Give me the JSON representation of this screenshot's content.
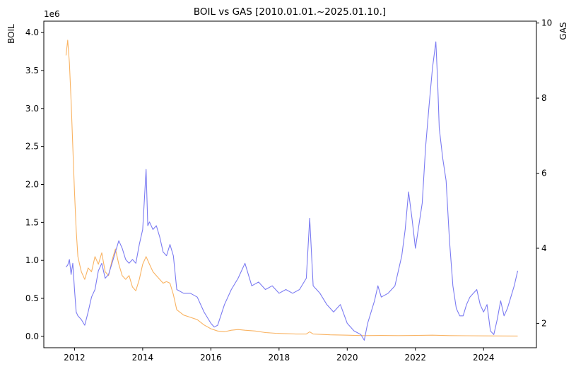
{
  "chart_data": {
    "type": "line",
    "title": "BOIL vs GAS [2010.01.01.~2025.01.10.]",
    "xlabel": "",
    "y_left": {
      "label": "BOIL",
      "label_color": "#ff8c00",
      "range": [
        -0.15,
        4.15
      ],
      "ticks": [
        0.0,
        0.5,
        1.0,
        1.5,
        2.0,
        2.5,
        3.0,
        3.5,
        4.0
      ],
      "tick_labels": [
        "0.0",
        "0.5",
        "1.0",
        "1.5",
        "2.0",
        "2.5",
        "3.0",
        "3.5",
        "4.0"
      ],
      "multiplier_label": "1e6"
    },
    "y_right": {
      "label": "GAS",
      "label_color": "#0000ff",
      "range": [
        1.35,
        10.05
      ],
      "ticks": [
        2,
        4,
        6,
        8,
        10
      ],
      "tick_labels": [
        "2",
        "4",
        "6",
        "8",
        "10"
      ]
    },
    "x_axis": {
      "range": [
        2011.1,
        2025.55
      ],
      "ticks": [
        2012,
        2014,
        2016,
        2018,
        2020,
        2022,
        2024
      ],
      "tick_labels": [
        "2012",
        "2014",
        "2016",
        "2018",
        "2020",
        "2022",
        "2024"
      ]
    },
    "series": [
      {
        "name": "BOIL",
        "axis": "left",
        "color": "#f9b362",
        "x": [
          2011.75,
          2011.8,
          2011.85,
          2011.9,
          2011.95,
          2012.0,
          2012.05,
          2012.1,
          2012.15,
          2012.2,
          2012.3,
          2012.4,
          2012.5,
          2012.6,
          2012.7,
          2012.8,
          2012.9,
          2013.0,
          2013.1,
          2013.2,
          2013.3,
          2013.4,
          2013.5,
          2013.6,
          2013.7,
          2013.8,
          2013.9,
          2014.0,
          2014.1,
          2014.2,
          2014.3,
          2014.4,
          2014.5,
          2014.6,
          2014.7,
          2014.8,
          2014.9,
          2015.0,
          2015.2,
          2015.4,
          2015.6,
          2015.8,
          2016.0,
          2016.2,
          2016.4,
          2016.6,
          2016.8,
          2017.0,
          2017.3,
          2017.6,
          2017.9,
          2018.2,
          2018.5,
          2018.8,
          2018.9,
          2019.0,
          2019.5,
          2020.0,
          2020.5,
          2021.0,
          2021.5,
          2022.0,
          2022.5,
          2023.0,
          2023.5,
          2024.0,
          2024.5,
          2025.0
        ],
        "values": [
          3.7,
          3.9,
          3.6,
          3.1,
          2.5,
          1.9,
          1.4,
          1.05,
          0.95,
          0.85,
          0.75,
          0.9,
          0.85,
          1.05,
          0.95,
          1.1,
          0.85,
          0.8,
          1.0,
          1.15,
          0.95,
          0.8,
          0.75,
          0.8,
          0.65,
          0.6,
          0.75,
          0.95,
          1.05,
          0.95,
          0.85,
          0.8,
          0.75,
          0.7,
          0.72,
          0.7,
          0.55,
          0.35,
          0.28,
          0.25,
          0.22,
          0.15,
          0.1,
          0.07,
          0.06,
          0.08,
          0.09,
          0.08,
          0.07,
          0.05,
          0.04,
          0.035,
          0.03,
          0.03,
          0.06,
          0.03,
          0.02,
          0.015,
          0.01,
          0.012,
          0.01,
          0.012,
          0.015,
          0.01,
          0.008,
          0.006,
          0.005,
          0.004
        ]
      },
      {
        "name": "GAS",
        "axis": "right",
        "color": "#7b7bf2",
        "x": [
          2011.75,
          2011.8,
          2011.85,
          2011.9,
          2011.95,
          2012.0,
          2012.05,
          2012.1,
          2012.2,
          2012.3,
          2012.4,
          2012.5,
          2012.6,
          2012.7,
          2012.8,
          2012.9,
          2013.0,
          2013.1,
          2013.2,
          2013.3,
          2013.4,
          2013.5,
          2013.6,
          2013.7,
          2013.8,
          2013.9,
          2014.0,
          2014.05,
          2014.1,
          2014.15,
          2014.2,
          2014.3,
          2014.4,
          2014.5,
          2014.6,
          2014.7,
          2014.8,
          2014.9,
          2015.0,
          2015.2,
          2015.4,
          2015.6,
          2015.8,
          2016.0,
          2016.1,
          2016.2,
          2016.4,
          2016.6,
          2016.8,
          2017.0,
          2017.2,
          2017.4,
          2017.6,
          2017.8,
          2018.0,
          2018.2,
          2018.4,
          2018.6,
          2018.8,
          2018.9,
          2019.0,
          2019.2,
          2019.4,
          2019.6,
          2019.8,
          2020.0,
          2020.2,
          2020.4,
          2020.5,
          2020.6,
          2020.8,
          2020.9,
          2021.0,
          2021.2,
          2021.4,
          2021.6,
          2021.7,
          2021.8,
          2021.9,
          2022.0,
          2022.1,
          2022.2,
          2022.3,
          2022.4,
          2022.5,
          2022.6,
          2022.65,
          2022.7,
          2022.8,
          2022.9,
          2023.0,
          2023.1,
          2023.2,
          2023.3,
          2023.4,
          2023.5,
          2023.6,
          2023.7,
          2023.8,
          2023.9,
          2024.0,
          2024.1,
          2024.2,
          2024.3,
          2024.4,
          2024.5,
          2024.6,
          2024.7,
          2024.8,
          2024.9,
          2025.0
        ],
        "values": [
          3.5,
          3.55,
          3.7,
          3.3,
          3.6,
          2.9,
          2.3,
          2.2,
          2.1,
          1.95,
          2.3,
          2.7,
          2.9,
          3.4,
          3.6,
          3.2,
          3.3,
          3.6,
          3.9,
          4.2,
          4.0,
          3.7,
          3.6,
          3.7,
          3.6,
          4.1,
          4.5,
          5.3,
          6.1,
          4.6,
          4.7,
          4.5,
          4.6,
          4.3,
          3.9,
          3.8,
          4.1,
          3.8,
          2.9,
          2.8,
          2.8,
          2.7,
          2.3,
          2.0,
          1.9,
          1.95,
          2.5,
          2.9,
          3.2,
          3.6,
          3.0,
          3.1,
          2.9,
          3.0,
          2.8,
          2.9,
          2.8,
          2.9,
          3.2,
          4.8,
          3.0,
          2.8,
          2.5,
          2.3,
          2.5,
          2.0,
          1.8,
          1.7,
          1.55,
          2.0,
          2.6,
          3.0,
          2.7,
          2.8,
          3.0,
          3.8,
          4.5,
          5.5,
          4.8,
          4.0,
          4.6,
          5.2,
          6.7,
          7.8,
          8.8,
          9.5,
          8.5,
          7.2,
          6.4,
          5.8,
          4.2,
          3.0,
          2.4,
          2.2,
          2.2,
          2.5,
          2.7,
          2.8,
          2.9,
          2.5,
          2.3,
          2.5,
          1.8,
          1.7,
          2.1,
          2.6,
          2.2,
          2.4,
          2.7,
          3.0,
          3.4
        ]
      }
    ]
  }
}
